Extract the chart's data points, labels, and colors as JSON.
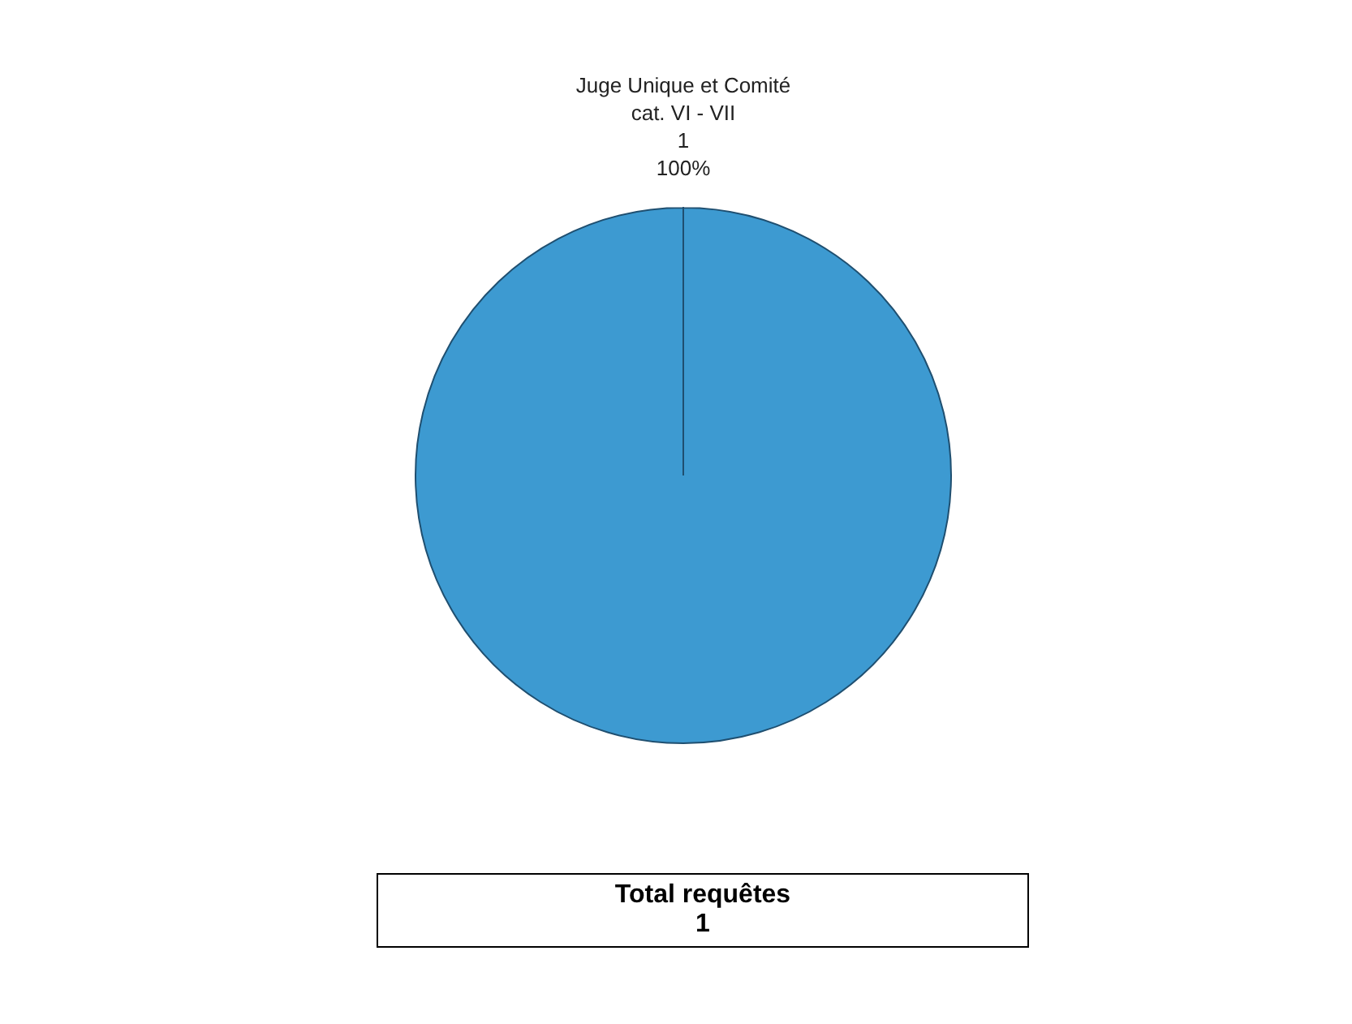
{
  "chart_data": {
    "type": "pie",
    "categories": [
      "Juge Unique et Comité\ncat. VI - VII"
    ],
    "values": [
      1
    ],
    "data_labels": true,
    "colors": [
      "#3d9ad1"
    ],
    "legend": false,
    "annotations": [
      "100%",
      "Total requêtes\n1"
    ]
  }
}
